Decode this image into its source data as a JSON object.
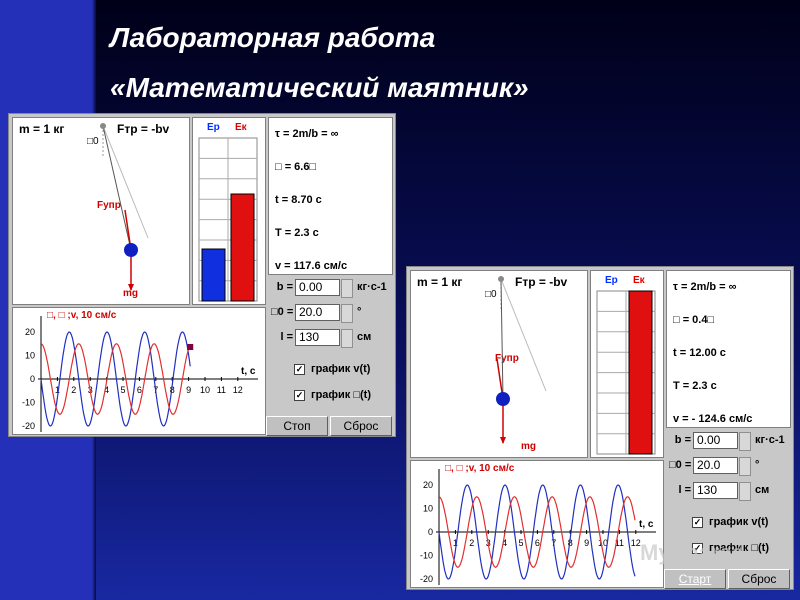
{
  "title": {
    "line1": "Лабораторная работа",
    "line2": "«Математический маятник»"
  },
  "panels": [
    {
      "mass": "m = 1 кг",
      "friction": "Fтр = -bv",
      "angle_label": "□0",
      "force_label": "Fупр",
      "gravity_label": "mg",
      "energy_labels": [
        "Ep",
        "Eк"
      ],
      "readouts": [
        "τ = 2m/b = ∞",
        "□ = 6.6□",
        "t = 8.70 с",
        "T = 2.3 с",
        "v = 117.6 см/с"
      ],
      "controls": [
        {
          "label": "b =",
          "value": "0.00",
          "unit": "кг·с-1"
        },
        {
          "label": "□0 =",
          "value": "20.0",
          "unit": "°"
        },
        {
          "label": "l =",
          "value": "130",
          "unit": "см"
        }
      ],
      "checkboxes": [
        "график v(t)",
        "график □(t)"
      ],
      "plot_legend": "□, □ ;v, 10 см/с",
      "time_axis": "t, с",
      "y_tick_labels": [
        "20",
        "10",
        "0",
        "-10",
        "-20"
      ],
      "x_tick_labels": [
        "1",
        "2",
        "3",
        "4",
        "5",
        "6",
        "7",
        "8",
        "9",
        "10",
        "11",
        "12"
      ],
      "buttons": [
        "Стоп",
        "Сброс"
      ]
    },
    {
      "mass": "m = 1 кг",
      "friction": "Fтр = -bv",
      "angle_label": "□0",
      "force_label": "Fупр",
      "gravity_label": "mg",
      "energy_labels": [
        "Ep",
        "Eк"
      ],
      "readouts": [
        "τ = 2m/b = ∞",
        "□ = 0.4□",
        "t = 12.00 с",
        "T = 2.3 с",
        "v = - 124.6 см/с"
      ],
      "controls": [
        {
          "label": "b =",
          "value": "0.00",
          "unit": "кг·с-1"
        },
        {
          "label": "□0 =",
          "value": "20.0",
          "unit": "°"
        },
        {
          "label": "l =",
          "value": "130",
          "unit": "см"
        }
      ],
      "checkboxes": [
        "график v(t)",
        "график □(t)"
      ],
      "plot_legend": "□, □ ;v, 10 см/с",
      "time_axis": "t, с",
      "y_tick_labels": [
        "20",
        "10",
        "0",
        "-10",
        "-20"
      ],
      "x_tick_labels": [
        "1",
        "2",
        "3",
        "4",
        "5",
        "6",
        "7",
        "8",
        "9",
        "10",
        "11",
        "12"
      ],
      "buttons": [
        "Старт",
        "Сброс"
      ]
    }
  ],
  "watermark": "MyShared"
}
